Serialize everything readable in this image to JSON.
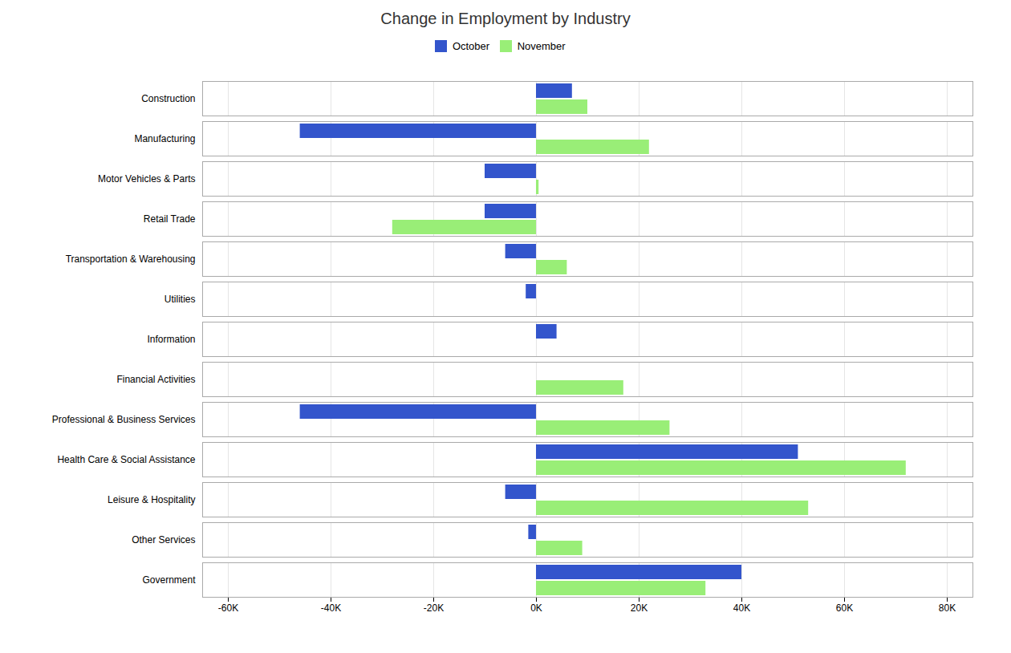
{
  "chart_data": {
    "type": "bar",
    "orientation": "horizontal",
    "title": "Change in Employment by Industry",
    "categories": [
      "Construction",
      "Manufacturing",
      "Motor Vehicles & Parts",
      "Retail Trade",
      "Transportation & Warehousing",
      "Utilities",
      "Information",
      "Financial Activities",
      "Professional & Business Services",
      "Health Care & Social Assistance",
      "Leisure & Hospitality",
      "Other Services",
      "Government"
    ],
    "series": [
      {
        "name": "October",
        "color": "#3355cc",
        "values": [
          7000,
          -46000,
          -10000,
          -10000,
          -6000,
          -2000,
          4000,
          0,
          -46000,
          51000,
          -6000,
          -1500,
          40000
        ]
      },
      {
        "name": "November",
        "color": "#99ee77",
        "values": [
          10000,
          22000,
          500,
          -28000,
          6000,
          0,
          0,
          17000,
          26000,
          72000,
          53000,
          9000,
          33000
        ]
      }
    ],
    "xlim": [
      -65000,
      85000
    ],
    "xticks": [
      {
        "value": -60000,
        "label": "-60K"
      },
      {
        "value": -40000,
        "label": "-40K"
      },
      {
        "value": -20000,
        "label": "-20K"
      },
      {
        "value": 0,
        "label": "0K"
      },
      {
        "value": 20000,
        "label": "20K"
      },
      {
        "value": 40000,
        "label": "40K"
      },
      {
        "value": 60000,
        "label": "60K"
      },
      {
        "value": 80000,
        "label": "80K"
      }
    ],
    "grid": true,
    "legend": "top"
  }
}
